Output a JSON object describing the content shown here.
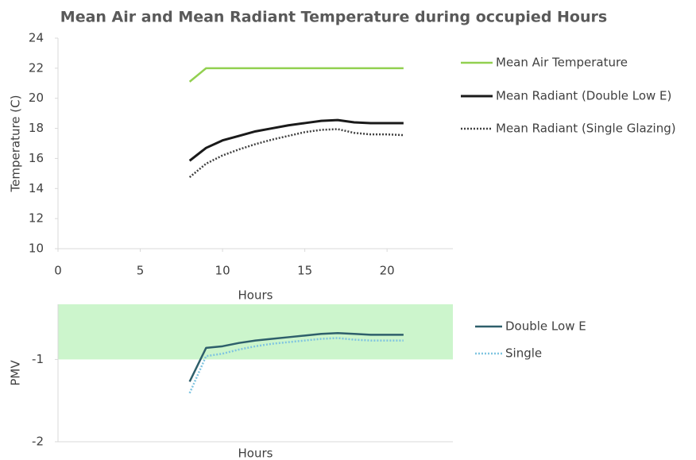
{
  "chart_data": [
    {
      "type": "line",
      "title": "Mean Air and Mean Radiant Temperature during occupied Hours",
      "xlabel": "Hours",
      "ylabel": "Temperature (C)",
      "xlim": [
        0,
        24
      ],
      "xticks": [
        0,
        5,
        10,
        15,
        20
      ],
      "ylim": [
        10,
        24
      ],
      "yticks": [
        10,
        12,
        14,
        16,
        18,
        20,
        22,
        24
      ],
      "x": [
        8,
        9,
        10,
        11,
        12,
        13,
        14,
        15,
        16,
        17,
        18,
        19,
        20,
        21
      ],
      "series": [
        {
          "name": "Mean Air Temperature",
          "color": "#92d050",
          "style": "solid",
          "values": [
            21.1,
            22.0,
            22,
            22,
            22,
            22,
            22,
            22,
            22,
            22,
            22,
            22,
            22,
            22
          ]
        },
        {
          "name": "Mean Radiant (Double Low E)",
          "color": "#1a1a1a",
          "style": "solid",
          "values": [
            15.85,
            16.7,
            17.2,
            17.5,
            17.8,
            18.0,
            18.2,
            18.35,
            18.5,
            18.55,
            18.4,
            18.35,
            18.35,
            18.35
          ]
        },
        {
          "name": "Mean Radiant (Single Glazing)",
          "color": "#404040",
          "style": "dotted",
          "values": [
            14.75,
            15.65,
            16.2,
            16.6,
            16.95,
            17.25,
            17.5,
            17.75,
            17.9,
            17.95,
            17.7,
            17.6,
            17.6,
            17.55
          ]
        }
      ]
    },
    {
      "type": "line",
      "xlabel": "Hours",
      "ylabel": "PMV",
      "xlim": [
        0,
        24
      ],
      "ylim": [
        -2,
        -0.33
      ],
      "yticks": [
        -2,
        -1
      ],
      "shaded_range": [
        -1,
        -0.33
      ],
      "shaded_color": "#ccf5cc",
      "x": [
        8,
        9,
        10,
        11,
        12,
        13,
        14,
        15,
        16,
        17,
        18,
        19,
        20,
        21
      ],
      "series": [
        {
          "name": "Double Low E",
          "color": "#2e5f6b",
          "style": "solid",
          "values": [
            -1.27,
            -0.86,
            -0.84,
            -0.8,
            -0.77,
            -0.75,
            -0.73,
            -0.71,
            -0.69,
            -0.68,
            -0.69,
            -0.7,
            -0.7,
            -0.7
          ]
        },
        {
          "name": "Single",
          "color": "#7fc4e0",
          "style": "dotted",
          "values": [
            -1.41,
            -0.96,
            -0.93,
            -0.88,
            -0.84,
            -0.81,
            -0.79,
            -0.77,
            -0.75,
            -0.74,
            -0.76,
            -0.77,
            -0.77,
            -0.77
          ]
        }
      ]
    }
  ]
}
